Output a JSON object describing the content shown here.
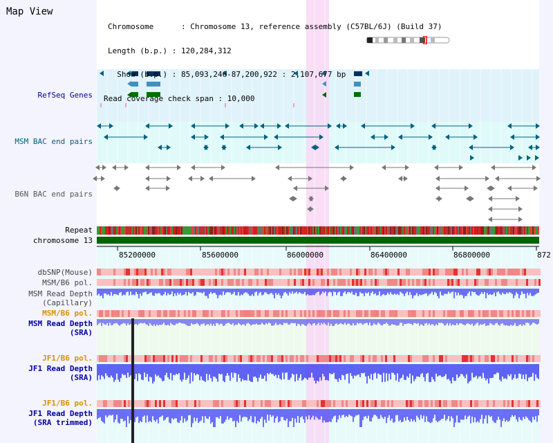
{
  "title": "Map View",
  "info": {
    "chromosome_line": "Chromosome      : Chromosome 13, reference assembly (C57BL/6J) (Build 37)",
    "length_line": "Length (b.p.) : 120,284,312",
    "show_line": "  Show (b.p.) : 85,093,246-87,200,922 : 2,107,677 bp",
    "coverage_line": "Read coverage check span : 10,000"
  },
  "tracks": {
    "refseq": "RefSeq Genes",
    "msm_bac": "MSM BAC end pairs",
    "b6n_bac": "B6N BAC end pairs",
    "repeat": "Repeat",
    "chromosome": "chromosome 13",
    "dbsnp": "dbSNP(Mouse)",
    "msm_b6_pol_1": "MSM/B6 pol.",
    "msm_depth_cap_1": "MSM Read Depth",
    "msm_depth_cap_2": "(Capillary)",
    "msm_b6_pol_2": "MSM/B6 pol.",
    "msm_depth_sra_1": "MSM Read Depth",
    "msm_depth_sra_2": "(SRA)",
    "jf1_b6_pol_1": "JF1/B6 pol.",
    "jf1_depth_sra_1": "JF1 Read Depth",
    "jf1_depth_sra_2": "(SRA)",
    "jf1_b6_pol_2": "JF1/B6 pol.",
    "jf1_depth_trim_1": "JF1 Read Depth",
    "jf1_depth_trim_2": "(SRA trimmed)"
  },
  "axis_ticks": [
    "85200000",
    "85600000",
    "86000000",
    "86400000",
    "86800000",
    "872"
  ],
  "colors": {
    "refseq_bg": "#e0f2fa",
    "msm_bg": "#e0fafa",
    "highlight": "#f8d8f4",
    "chrom_bar": "#006400",
    "depth": "#5050ff",
    "pol": "#ee5050",
    "sra_bg": "#eefaee"
  }
}
